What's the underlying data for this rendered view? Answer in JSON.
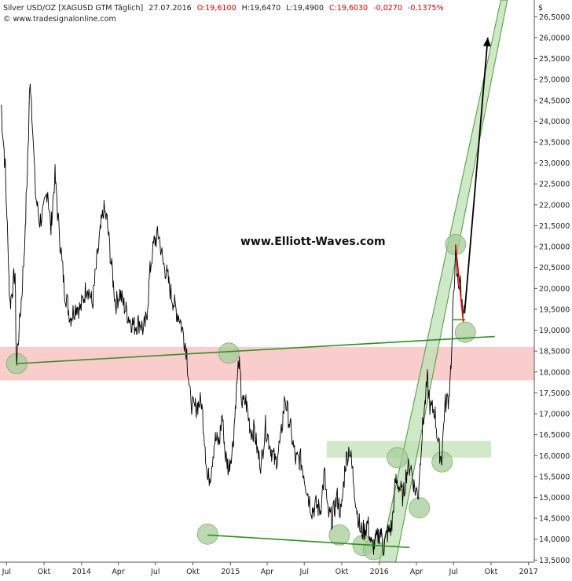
{
  "header": {
    "instrument": "Silver USD/OZ [XAGUSD GTM  Täglich]",
    "date": "27.07.2016",
    "open": "O:19,6100",
    "high": "H:19,6470",
    "low": "L:19,4900",
    "close": "C:19,6030",
    "change": "-0,0270",
    "change_pct": "-0,1375%",
    "source": "© www.tradesignalonline.com",
    "currency": "$",
    "watermark": "www.Elliott-Waves.com"
  },
  "colors": {
    "price": "#000000",
    "channel_fill": "#bfe0b4",
    "channel_edge": "#4a9a3a",
    "zone_red": "#f9c4c4",
    "zone_green": "#c6e3bc",
    "trendline": "#2f8f22",
    "circle": "#a6cc98",
    "arrow": "#000000",
    "red_line": "#e00000",
    "change_red": "#d00000"
  },
  "chart_data": {
    "type": "line",
    "title": "Silver USD/OZ [XAGUSD GTM  Täglich]",
    "xlabel": "",
    "ylabel": "",
    "y_axis_position": "right",
    "ylim": [
      13.45,
      26.9
    ],
    "xlim": [
      "2013-06-15",
      "2017-01-15"
    ],
    "grid": false,
    "x_ticks": [
      {
        "date": "2013-07-01",
        "label": "Jul"
      },
      {
        "date": "2013-10-01",
        "label": "Okt"
      },
      {
        "date": "2014-01-01",
        "label": "2014"
      },
      {
        "date": "2014-04-01",
        "label": "Apr"
      },
      {
        "date": "2014-07-01",
        "label": "Jul"
      },
      {
        "date": "2014-10-01",
        "label": "Okt"
      },
      {
        "date": "2015-01-01",
        "label": "2015"
      },
      {
        "date": "2015-04-01",
        "label": "Apr"
      },
      {
        "date": "2015-07-01",
        "label": "Jul"
      },
      {
        "date": "2015-10-01",
        "label": "Okt"
      },
      {
        "date": "2016-01-01",
        "label": "2016"
      },
      {
        "date": "2016-04-01",
        "label": "Apr"
      },
      {
        "date": "2016-07-01",
        "label": "Jul"
      },
      {
        "date": "2016-10-01",
        "label": "Okt"
      },
      {
        "date": "2017-01-01",
        "label": "2017"
      }
    ],
    "y_ticks": [
      {
        "value": 13.5,
        "label": "13,5000"
      },
      {
        "value": 14.0,
        "label": "14,0000"
      },
      {
        "value": 14.5,
        "label": "14,5000"
      },
      {
        "value": 15.0,
        "label": "15,0000"
      },
      {
        "value": 15.5,
        "label": "15,5000"
      },
      {
        "value": 16.0,
        "label": "16,0000"
      },
      {
        "value": 16.5,
        "label": "16,5000"
      },
      {
        "value": 17.0,
        "label": "17,0000"
      },
      {
        "value": 17.5,
        "label": "17,5000"
      },
      {
        "value": 18.0,
        "label": "18,0000"
      },
      {
        "value": 18.5,
        "label": "18,5000"
      },
      {
        "value": 19.0,
        "label": "19,0000"
      },
      {
        "value": 19.5,
        "label": "19,5000"
      },
      {
        "value": 20.0,
        "label": "20,0000"
      },
      {
        "value": 20.5,
        "label": "20,5000"
      },
      {
        "value": 21.0,
        "label": "21,0000"
      },
      {
        "value": 21.5,
        "label": "21,5000"
      },
      {
        "value": 22.0,
        "label": "22,0000"
      },
      {
        "value": 22.5,
        "label": "22,5000"
      },
      {
        "value": 23.0,
        "label": "23,0000"
      },
      {
        "value": 23.5,
        "label": "23,5000"
      },
      {
        "value": 24.0,
        "label": "24,0000"
      },
      {
        "value": 24.5,
        "label": "24,5000"
      },
      {
        "value": 25.0,
        "label": "25,0000"
      },
      {
        "value": 25.5,
        "label": "25,5000"
      },
      {
        "value": 26.0,
        "label": "26,0000"
      },
      {
        "value": 26.5,
        "label": "26,5000"
      }
    ],
    "series": [
      {
        "values": [
          [
            "2013-06-18",
            24.4
          ],
          [
            "2013-06-28",
            22.9
          ],
          [
            "2013-07-10",
            19.6
          ],
          [
            "2013-07-22",
            20.4
          ],
          [
            "2013-07-26",
            18.2
          ],
          [
            "2013-08-08",
            19.9
          ],
          [
            "2013-08-16",
            21.3
          ],
          [
            "2013-08-24",
            23.6
          ],
          [
            "2013-08-28",
            25.1
          ],
          [
            "2013-09-03",
            24.0
          ],
          [
            "2013-09-10",
            22.3
          ],
          [
            "2013-09-20",
            21.6
          ],
          [
            "2013-09-30",
            21.8
          ],
          [
            "2013-10-10",
            22.4
          ],
          [
            "2013-10-18",
            21.4
          ],
          [
            "2013-10-28",
            22.7
          ],
          [
            "2013-11-08",
            21.3
          ],
          [
            "2013-11-20",
            20.0
          ],
          [
            "2013-12-05",
            19.3
          ],
          [
            "2013-12-20",
            19.6
          ],
          [
            "2013-12-30",
            19.5
          ],
          [
            "2014-01-15",
            20.1
          ],
          [
            "2014-01-28",
            19.6
          ],
          [
            "2014-02-12",
            21.0
          ],
          [
            "2014-02-24",
            21.9
          ],
          [
            "2014-03-05",
            21.6
          ],
          [
            "2014-03-14",
            20.7
          ],
          [
            "2014-03-26",
            19.6
          ],
          [
            "2014-04-05",
            19.9
          ],
          [
            "2014-04-15",
            19.6
          ],
          [
            "2014-04-28",
            19.3
          ],
          [
            "2014-05-10",
            19.1
          ],
          [
            "2014-05-25",
            19.2
          ],
          [
            "2014-06-02",
            19.0
          ],
          [
            "2014-06-10",
            19.3
          ],
          [
            "2014-06-18",
            20.4
          ],
          [
            "2014-06-28",
            21.1
          ],
          [
            "2014-07-10",
            21.3
          ],
          [
            "2014-07-20",
            20.6
          ],
          [
            "2014-07-28",
            20.4
          ],
          [
            "2014-08-08",
            19.9
          ],
          [
            "2014-08-20",
            19.5
          ],
          [
            "2014-08-30",
            19.3
          ],
          [
            "2014-09-08",
            18.9
          ],
          [
            "2014-09-16",
            18.5
          ],
          [
            "2014-09-24",
            17.4
          ],
          [
            "2014-10-03",
            17.1
          ],
          [
            "2014-10-12",
            17.2
          ],
          [
            "2014-10-22",
            17.3
          ],
          [
            "2014-10-31",
            16.3
          ],
          [
            "2014-11-06",
            15.4
          ],
          [
            "2014-11-14",
            15.6
          ],
          [
            "2014-11-24",
            16.4
          ],
          [
            "2014-12-05",
            16.3
          ],
          [
            "2014-12-12",
            17.0
          ],
          [
            "2014-12-20",
            16.0
          ],
          [
            "2014-12-28",
            15.7
          ],
          [
            "2015-01-08",
            16.3
          ],
          [
            "2015-01-16",
            17.6
          ],
          [
            "2015-01-22",
            18.3
          ],
          [
            "2015-01-30",
            17.2
          ],
          [
            "2015-02-08",
            17.3
          ],
          [
            "2015-02-20",
            16.6
          ],
          [
            "2015-03-01",
            16.6
          ],
          [
            "2015-03-10",
            16.0
          ],
          [
            "2015-03-18",
            15.8
          ],
          [
            "2015-03-28",
            16.7
          ],
          [
            "2015-04-10",
            16.2
          ],
          [
            "2015-04-22",
            15.8
          ],
          [
            "2015-05-05",
            16.4
          ],
          [
            "2015-05-15",
            17.4
          ],
          [
            "2015-05-28",
            16.7
          ],
          [
            "2015-06-10",
            15.9
          ],
          [
            "2015-06-22",
            15.9
          ],
          [
            "2015-06-30",
            15.6
          ],
          [
            "2015-07-10",
            15.1
          ],
          [
            "2015-07-20",
            14.7
          ],
          [
            "2015-07-30",
            14.8
          ],
          [
            "2015-08-10",
            14.7
          ],
          [
            "2015-08-20",
            15.6
          ],
          [
            "2015-08-28",
            14.6
          ],
          [
            "2015-09-08",
            14.5
          ],
          [
            "2015-09-20",
            15.0
          ],
          [
            "2015-09-30",
            14.6
          ],
          [
            "2015-10-10",
            15.8
          ],
          [
            "2015-10-20",
            16.2
          ],
          [
            "2015-10-28",
            15.6
          ],
          [
            "2015-11-06",
            14.8
          ],
          [
            "2015-11-16",
            14.2
          ],
          [
            "2015-11-26",
            14.2
          ],
          [
            "2015-12-04",
            14.4
          ],
          [
            "2015-12-14",
            13.8
          ],
          [
            "2015-12-22",
            13.9
          ],
          [
            "2016-01-04",
            14.2
          ],
          [
            "2016-01-12",
            13.8
          ],
          [
            "2016-01-20",
            14.1
          ],
          [
            "2016-02-01",
            14.3
          ],
          [
            "2016-02-10",
            15.4
          ],
          [
            "2016-02-18",
            15.3
          ],
          [
            "2016-02-29",
            15.0
          ],
          [
            "2016-03-08",
            15.6
          ],
          [
            "2016-03-18",
            15.8
          ],
          [
            "2016-03-28",
            15.2
          ],
          [
            "2016-04-06",
            15.1
          ],
          [
            "2016-04-14",
            16.4
          ],
          [
            "2016-04-22",
            17.2
          ],
          [
            "2016-04-28",
            17.8
          ],
          [
            "2016-05-06",
            17.1
          ],
          [
            "2016-05-16",
            17.1
          ],
          [
            "2016-05-26",
            16.2
          ],
          [
            "2016-06-02",
            15.9
          ],
          [
            "2016-06-10",
            17.2
          ],
          [
            "2016-06-20",
            17.4
          ],
          [
            "2016-06-27",
            18.5
          ],
          [
            "2016-07-01",
            19.7
          ],
          [
            "2016-07-06",
            20.8
          ],
          [
            "2016-07-11",
            20.2
          ],
          [
            "2016-07-18",
            20.1
          ],
          [
            "2016-07-22",
            19.6
          ],
          [
            "2016-07-27",
            19.6
          ]
        ]
      }
    ],
    "annotations": {
      "red_zone": {
        "y_from": 17.8,
        "y_to": 18.6
      },
      "green_zone": {
        "x_from": "2015-08-25",
        "x_to": "2016-10-01",
        "y_from": 15.95,
        "y_to": 16.35
      },
      "channel_upper": [
        [
          "2016-01-01",
          13.45
        ],
        [
          "2016-10-25",
          26.9
        ]
      ],
      "channel_lower": [
        [
          "2016-02-10",
          13.45
        ],
        [
          "2016-11-10",
          26.9
        ]
      ],
      "channel_band_width_days": 48,
      "trendline_upper": [
        [
          "2013-07-26",
          18.2
        ],
        [
          "2016-10-10",
          18.85
        ]
      ],
      "trendline_lower": [
        [
          "2014-11-06",
          14.1
        ],
        [
          "2016-03-15",
          13.8
        ]
      ],
      "red_line": [
        [
          "2016-07-06",
          21.05
        ],
        [
          "2016-07-25",
          19.2
        ]
      ],
      "short_line": [
        [
          "2016-06-28",
          19.25
        ],
        [
          "2016-07-30",
          19.25
        ]
      ],
      "arrow": [
        [
          "2016-07-28",
          19.4
        ],
        [
          "2016-09-23",
          26.0
        ]
      ],
      "circles": [
        [
          "2013-07-26",
          18.2
        ],
        [
          "2014-12-28",
          18.45
        ],
        [
          "2014-11-06",
          14.12
        ],
        [
          "2015-09-25",
          14.1
        ],
        [
          "2015-11-22",
          13.85
        ],
        [
          "2015-12-18",
          13.75
        ],
        [
          "2016-02-14",
          15.95
        ],
        [
          "2016-04-08",
          14.75
        ],
        [
          "2016-06-03",
          15.85
        ],
        [
          "2016-07-06",
          21.05
        ],
        [
          "2016-07-30",
          18.95
        ]
      ]
    }
  }
}
